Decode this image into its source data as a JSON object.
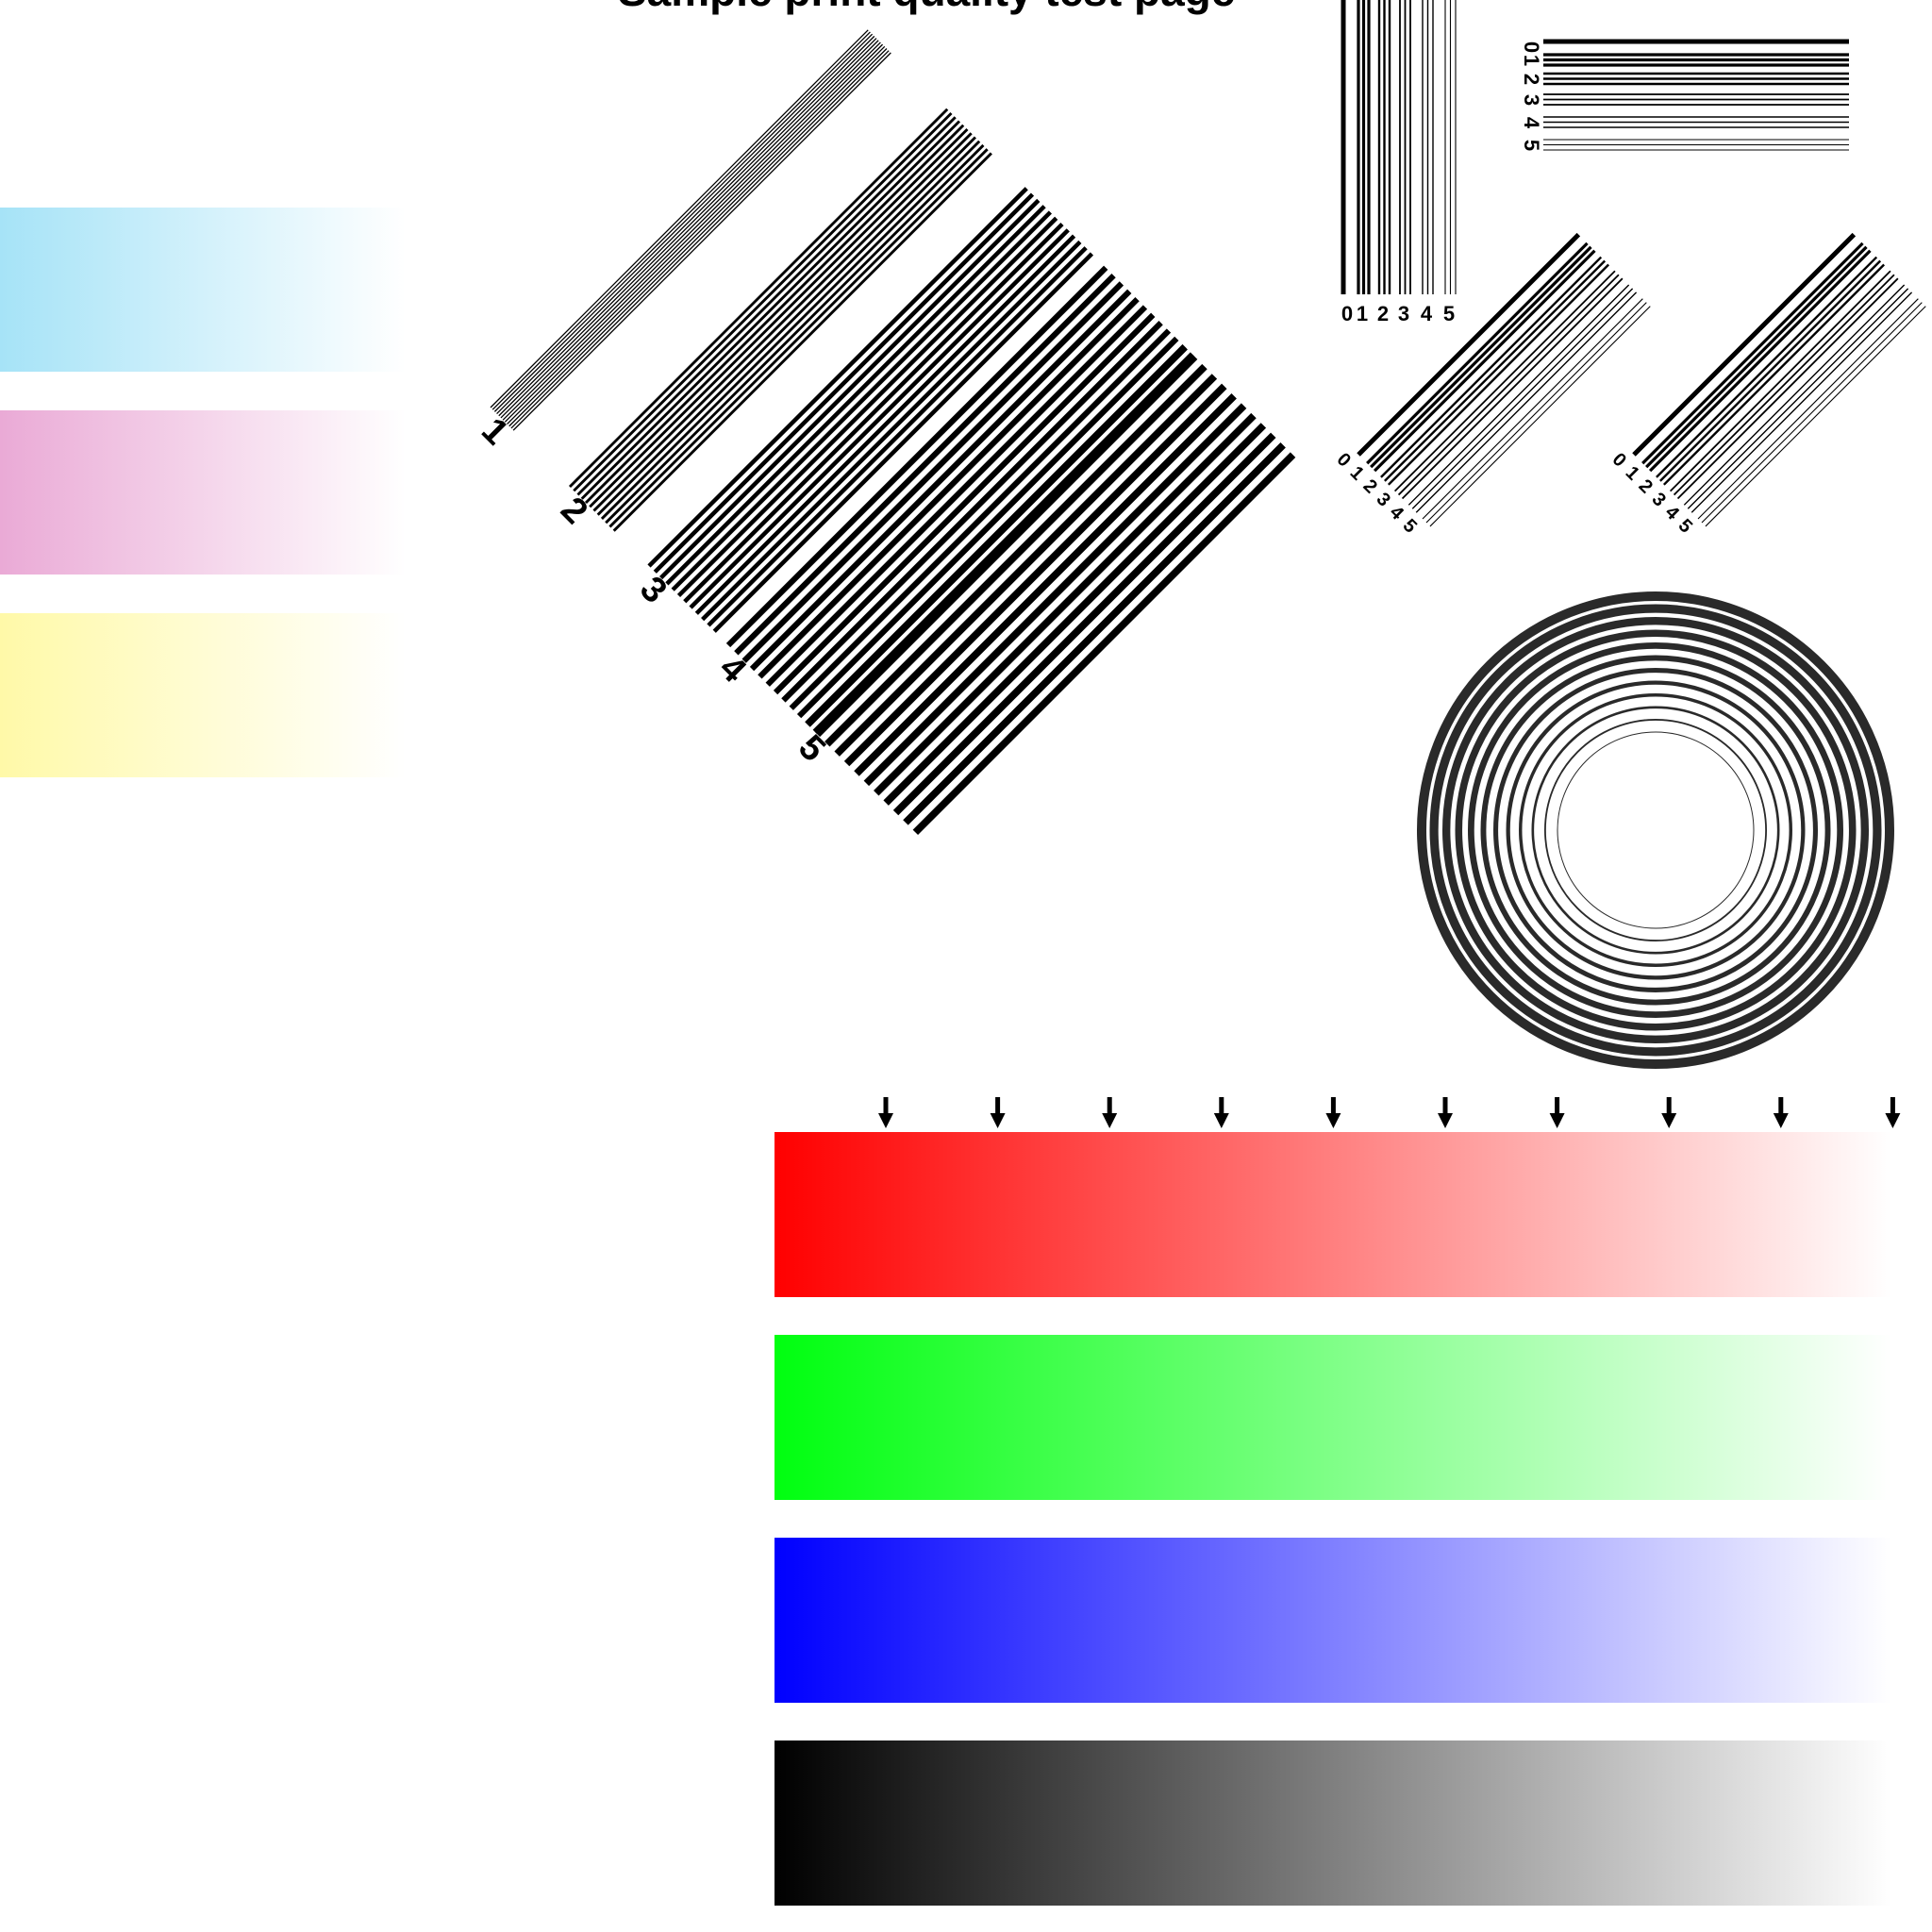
{
  "title_fragment": "Sample print quality test page",
  "colors": {
    "cyan": "#a6e3f7",
    "magenta": "#eaaad6",
    "yellow": "#fff9a8",
    "red": "#ff0000",
    "green": "#00ff10",
    "blue": "#0000ff",
    "black": "#000000",
    "white": "#ffffff",
    "ring": "#2a2a2a"
  },
  "diagonal_group_labels": [
    "1",
    "2",
    "3",
    "4",
    "5"
  ],
  "tick_labels": [
    "0",
    "1",
    "2",
    "3",
    "4",
    "5"
  ],
  "marker_count": 10,
  "ring_count": 12
}
